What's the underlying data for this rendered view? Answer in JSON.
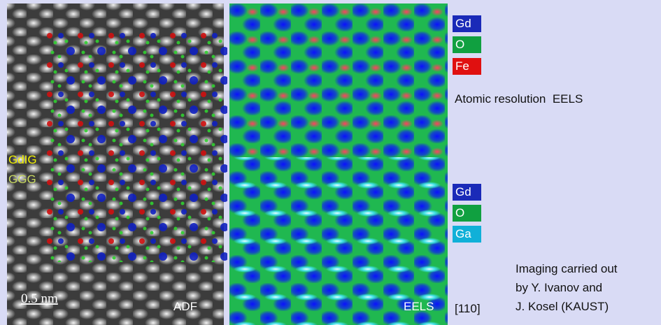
{
  "adf_panel": {
    "labels": [
      "GdIG",
      "GGG"
    ],
    "scale_bar": "0.5 nm",
    "name": "ADF"
  },
  "eels_panel": {
    "name": "EELS"
  },
  "legend_top": {
    "items": [
      "Gd",
      "O",
      "Fe"
    ]
  },
  "caption": "Atomic resolution  EELS",
  "legend_bottom": {
    "items": [
      "Gd",
      "O",
      "Ga"
    ]
  },
  "orientation": "[110]",
  "credit": [
    "Imaging carried out",
    "by Y. Ivanov and",
    "J. Kosel (KAUST)"
  ]
}
